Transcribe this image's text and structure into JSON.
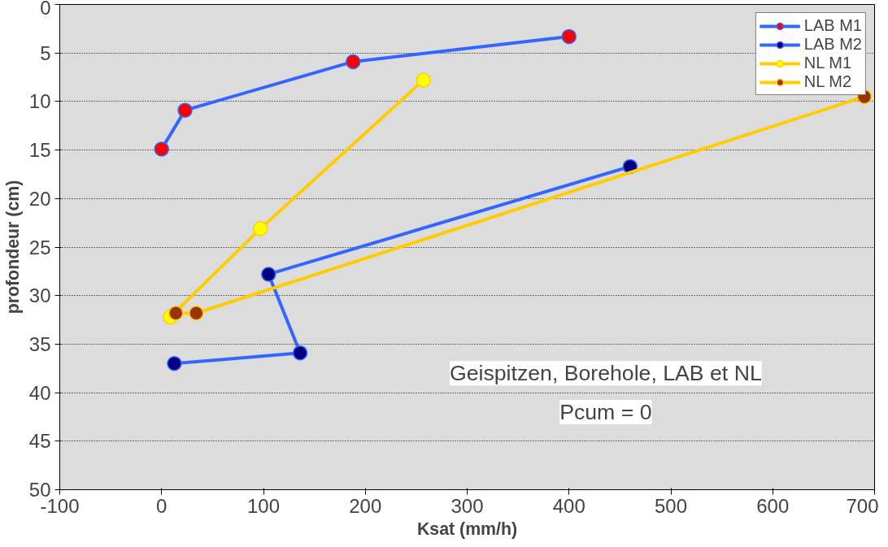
{
  "chart_data": {
    "type": "line",
    "xlabel": "Ksat (mm/h)",
    "ylabel": "profondeur (cm)",
    "xlim": [
      -100,
      700
    ],
    "xticks": [
      -100,
      0,
      100,
      200,
      300,
      400,
      500,
      600,
      700
    ],
    "ylim": [
      50,
      0
    ],
    "yticks": [
      0,
      5,
      10,
      15,
      20,
      25,
      30,
      35,
      40,
      45,
      50
    ],
    "grid": "y",
    "legend": "top right",
    "marker": "circle",
    "line_style": "solid",
    "annotations": [
      "Geispitzen, Borehole, LAB et NL",
      "Pcum = 0"
    ],
    "series": [
      {
        "name": "LAB M1",
        "color": "#3366ff",
        "colors": [
          "#ff0000",
          "#ff0000",
          "#ff0000",
          "#ff0000"
        ],
        "x": [
          400,
          188,
          23,
          0
        ],
        "values": [
          3.3,
          5.9,
          10.9,
          14.9
        ]
      },
      {
        "name": "LAB M2",
        "color": "#3366ff",
        "colors": [
          "#000080",
          "#000080",
          "#000080",
          "#000080"
        ],
        "x": [
          460,
          105,
          136,
          12.5
        ],
        "values": [
          16.7,
          27.8,
          35.9,
          37.0
        ]
      },
      {
        "name": "NL M1",
        "color": "#ffcc00",
        "colors": [
          "#ffff00",
          "#ffff00",
          "#ffff00"
        ],
        "x": [
          257,
          97,
          8.5
        ],
        "values": [
          7.8,
          23.1,
          32.2
        ]
      },
      {
        "name": "NL M2",
        "color": "#ffcc00",
        "colors": [
          "#993300",
          "#993300",
          "#993300"
        ],
        "x": [
          14,
          34,
          690
        ],
        "values": [
          31.8,
          31.8,
          9.5
        ]
      }
    ]
  }
}
